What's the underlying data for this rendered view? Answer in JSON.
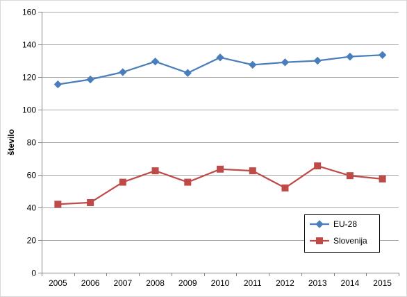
{
  "chart_data": {
    "type": "line",
    "title": "",
    "xlabel": "",
    "ylabel": "število",
    "categories": [
      "2005",
      "2006",
      "2007",
      "2008",
      "2009",
      "2010",
      "2011",
      "2012",
      "2013",
      "2014",
      "2015"
    ],
    "ylim": [
      0,
      160
    ],
    "yticks": [
      0,
      20,
      40,
      60,
      80,
      100,
      120,
      140,
      160
    ],
    "grid": "horizontal",
    "legend_position": "bottom-right",
    "series": [
      {
        "name": "EU-28",
        "color": "#4a7ebb",
        "marker": "diamond",
        "values": [
          115.5,
          118.5,
          123,
          129.5,
          122.5,
          132,
          127.5,
          129,
          130,
          132.5,
          133.5
        ]
      },
      {
        "name": "Slovenija",
        "color": "#be4b48",
        "marker": "square",
        "values": [
          42,
          43,
          55.5,
          62.5,
          55.5,
          63.5,
          62.5,
          52,
          65.5,
          59.5,
          57.5
        ]
      }
    ]
  }
}
